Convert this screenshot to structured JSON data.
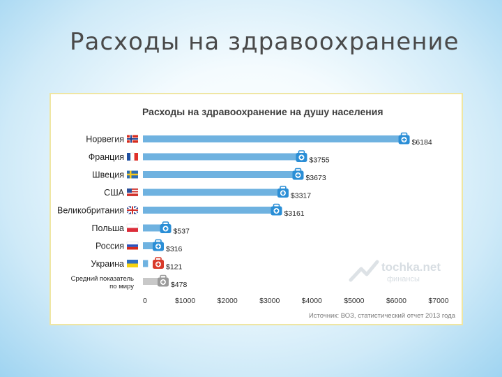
{
  "slide": {
    "title": "Расходы на здравоохранение"
  },
  "colors": {
    "bar": "#6fb2e0",
    "bar_ukraine": "#6fb2e0",
    "bar_average": "#c8c8c8",
    "icon_blue": "#2a8ed6",
    "icon_red": "#d93a2a",
    "icon_grey": "#9a9a9a"
  },
  "watermark": {
    "name": "tochka.net",
    "sub": "финансы"
  },
  "chart_data": {
    "type": "bar",
    "orientation": "horizontal",
    "title": "Расходы на здравоохранение на душу населения",
    "source": "Источник: ВОЗ, статистический отчет 2013 года",
    "xlim": [
      0,
      7000
    ],
    "xticks": [
      "0",
      "$1000",
      "$2000",
      "$3000",
      "$4000",
      "$5000",
      "$6000",
      "$7000"
    ],
    "xtick_values": [
      0,
      1000,
      2000,
      3000,
      4000,
      5000,
      6000,
      7000
    ],
    "categories": [
      "Норвегия",
      "Франция",
      "Швеция",
      "США",
      "Великобритания",
      "Польша",
      "Россия",
      "Украина",
      "Средний показатель по миру"
    ],
    "category_lines": [
      [
        "Норвегия"
      ],
      [
        "Франция"
      ],
      [
        "Швеция"
      ],
      [
        "США"
      ],
      [
        "Великобритания"
      ],
      [
        "Польша"
      ],
      [
        "Россия"
      ],
      [
        "Украина"
      ],
      [
        "Средний показатель",
        "по миру"
      ]
    ],
    "values": [
      6184,
      3755,
      3673,
      3317,
      3161,
      537,
      316,
      121,
      478
    ],
    "value_labels": [
      "$6184",
      "$3755",
      "$3673",
      "$3317",
      "$3161",
      "$537",
      "$316",
      "$121",
      "$478"
    ],
    "flags": [
      "norway",
      "france",
      "sweden",
      "usa",
      "uk",
      "poland",
      "russia",
      "ukraine",
      "none"
    ],
    "icon_colors": [
      "blue",
      "blue",
      "blue",
      "blue",
      "blue",
      "blue",
      "blue",
      "red",
      "grey"
    ],
    "grid": false,
    "legend": "none"
  }
}
